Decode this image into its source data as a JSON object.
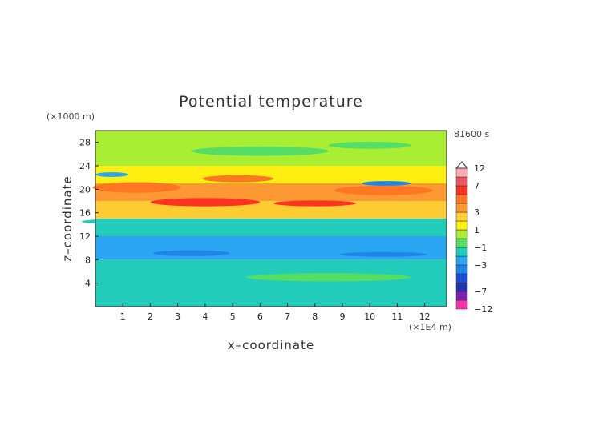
{
  "chart_data": {
    "type": "heatmap",
    "title": "Potential temperature",
    "xlabel": "x–coordinate",
    "ylabel": "z–coordinate",
    "x_unit": "(×1E4 m)",
    "y_unit": "(×1000 m)",
    "time_label": "81600 s",
    "xlim": [
      0,
      12.8
    ],
    "ylim": [
      0,
      30
    ],
    "x_ticks": [
      "1",
      "2",
      "3",
      "4",
      "5",
      "6",
      "7",
      "8",
      "9",
      "10",
      "11",
      "12"
    ],
    "y_ticks": [
      "4",
      "8",
      "12",
      "16",
      "20",
      "24",
      "28"
    ],
    "colorbar_ticks": [
      "12",
      "7",
      "3",
      "1",
      "−1",
      "−3",
      "−7",
      "−12"
    ],
    "colorbar_levels": [
      -12,
      -9,
      -7,
      -5,
      -4,
      -3,
      -2,
      -1,
      0,
      1,
      2,
      3,
      4,
      5,
      7,
      9,
      12
    ],
    "colorbar_colors": [
      "#ff33aa",
      "#7a1fb0",
      "#2233b0",
      "#1f4fd8",
      "#1f86e8",
      "#2aa6f2",
      "#22ccbb",
      "#55dd66",
      "#aaee33",
      "#ffee11",
      "#ffcc33",
      "#ff9933",
      "#ff7722",
      "#ff3322",
      "#e85a66",
      "#ffaaaa"
    ],
    "z_approx_profile": [
      {
        "z_range": [
          0,
          6
        ],
        "value": -1.5
      },
      {
        "z_range": [
          6,
          8
        ],
        "value": -2
      },
      {
        "z_range": [
          8,
          12
        ],
        "value": -3
      },
      {
        "z_range": [
          12,
          15
        ],
        "value": -1.5
      },
      {
        "z_range": [
          15,
          18
        ],
        "value": 2.5
      },
      {
        "z_range": [
          18,
          21
        ],
        "value": 3
      },
      {
        "z_range": [
          21,
          24
        ],
        "value": 1
      },
      {
        "z_range": [
          24,
          30
        ],
        "value": 0
      }
    ]
  }
}
